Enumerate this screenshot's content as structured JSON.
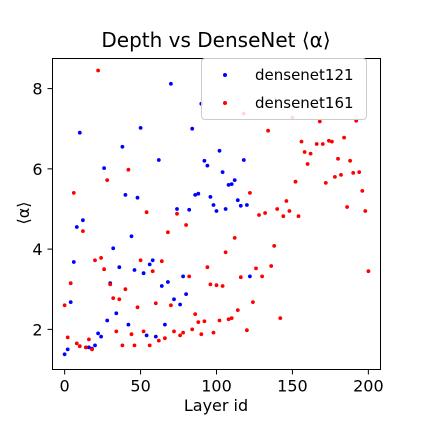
{
  "chart_data": {
    "type": "scatter",
    "title": "Depth vs DenseNet ⟨α⟩",
    "xlabel": "Layer id",
    "ylabel": "⟨α⟩",
    "xlim": [
      -8,
      208
    ],
    "ylim": [
      1.0,
      8.75
    ],
    "xticks": [
      0,
      50,
      100,
      150,
      200
    ],
    "yticks": [
      2,
      4,
      6,
      8
    ],
    "grid": false,
    "legend_position": "top-right",
    "series": [
      {
        "name": "densenet121",
        "color": "#0000ff",
        "points": [
          [
            0,
            1.38
          ],
          [
            2,
            1.5
          ],
          [
            4,
            2.68
          ],
          [
            6,
            3.68
          ],
          [
            8,
            4.55
          ],
          [
            10,
            6.9
          ],
          [
            12,
            4.72
          ],
          [
            14,
            1.55
          ],
          [
            16,
            1.55
          ],
          [
            18,
            1.52
          ],
          [
            20,
            1.6
          ],
          [
            22,
            1.9
          ],
          [
            24,
            1.82
          ],
          [
            26,
            6.02
          ],
          [
            28,
            2.22
          ],
          [
            30,
            3.15
          ],
          [
            32,
            4.02
          ],
          [
            34,
            2.4
          ],
          [
            36,
            3.55
          ],
          [
            38,
            6.55
          ],
          [
            40,
            5.35
          ],
          [
            42,
            2.12
          ],
          [
            44,
            4.32
          ],
          [
            46,
            3.48
          ],
          [
            48,
            5.28
          ],
          [
            50,
            7.02
          ],
          [
            52,
            3.4
          ],
          [
            54,
            1.85
          ],
          [
            56,
            3.62
          ],
          [
            58,
            3.72
          ],
          [
            60,
            1.82
          ],
          [
            62,
            6.22
          ],
          [
            64,
            3.08
          ],
          [
            66,
            2.12
          ],
          [
            68,
            3.18
          ],
          [
            70,
            8.12
          ],
          [
            72,
            2.75
          ],
          [
            74,
            5.0
          ],
          [
            76,
            2.62
          ],
          [
            78,
            3.32
          ],
          [
            80,
            2.88
          ],
          [
            82,
            4.98
          ],
          [
            84,
            7.0
          ],
          [
            86,
            5.35
          ],
          [
            88,
            5.38
          ],
          [
            90,
            7.62
          ],
          [
            92,
            6.2
          ],
          [
            94,
            6.08
          ],
          [
            96,
            5.3
          ],
          [
            98,
            5.1
          ],
          [
            100,
            4.95
          ],
          [
            102,
            6.45
          ],
          [
            104,
            5.92
          ],
          [
            106,
            5.0
          ],
          [
            108,
            5.6
          ],
          [
            110,
            5.62
          ],
          [
            112,
            5.72
          ],
          [
            114,
            5.22
          ],
          [
            116,
            5.08
          ],
          [
            118,
            6.22
          ],
          [
            120,
            5.1
          ],
          [
            122,
            3.32
          ]
        ]
      },
      {
        "name": "densenet161",
        "color": "#ff0000",
        "points": [
          [
            0,
            2.6
          ],
          [
            2,
            1.8
          ],
          [
            4,
            3.15
          ],
          [
            6,
            5.4
          ],
          [
            8,
            1.65
          ],
          [
            10,
            1.58
          ],
          [
            12,
            4.45
          ],
          [
            14,
            1.55
          ],
          [
            16,
            1.75
          ],
          [
            18,
            1.5
          ],
          [
            20,
            3.72
          ],
          [
            22,
            8.45
          ],
          [
            24,
            3.78
          ],
          [
            26,
            3.5
          ],
          [
            28,
            5.72
          ],
          [
            30,
            3.12
          ],
          [
            32,
            2.78
          ],
          [
            34,
            1.95
          ],
          [
            36,
            2.75
          ],
          [
            38,
            1.6
          ],
          [
            40,
            3.0
          ],
          [
            42,
            5.98
          ],
          [
            44,
            1.88
          ],
          [
            46,
            1.6
          ],
          [
            48,
            2.55
          ],
          [
            50,
            3.72
          ],
          [
            52,
            1.95
          ],
          [
            54,
            4.92
          ],
          [
            56,
            1.6
          ],
          [
            58,
            3.45
          ],
          [
            60,
            2.65
          ],
          [
            62,
            1.72
          ],
          [
            64,
            3.7
          ],
          [
            66,
            1.78
          ],
          [
            68,
            4.42
          ],
          [
            70,
            2.6
          ],
          [
            72,
            1.95
          ],
          [
            74,
            4.88
          ],
          [
            76,
            1.85
          ],
          [
            78,
            1.92
          ],
          [
            80,
            4.6
          ],
          [
            82,
            3.32
          ],
          [
            84,
            2.0
          ],
          [
            86,
            2.38
          ],
          [
            88,
            2.18
          ],
          [
            90,
            1.88
          ],
          [
            92,
            2.2
          ],
          [
            94,
            3.55
          ],
          [
            96,
            3.12
          ],
          [
            98,
            1.92
          ],
          [
            100,
            3.1
          ],
          [
            102,
            2.22
          ],
          [
            104,
            3.08
          ],
          [
            106,
            3.92
          ],
          [
            108,
            2.25
          ],
          [
            110,
            2.28
          ],
          [
            112,
            4.28
          ],
          [
            114,
            2.48
          ],
          [
            116,
            3.3
          ],
          [
            118,
            7.38
          ],
          [
            120,
            1.98
          ],
          [
            122,
            5.4
          ],
          [
            124,
            2.68
          ],
          [
            126,
            3.52
          ],
          [
            128,
            4.85
          ],
          [
            130,
            3.32
          ],
          [
            132,
            4.9
          ],
          [
            134,
            6.95
          ],
          [
            136,
            3.58
          ],
          [
            138,
            4.08
          ],
          [
            140,
            5.0
          ],
          [
            142,
            2.28
          ],
          [
            144,
            4.82
          ],
          [
            146,
            5.2
          ],
          [
            148,
            4.95
          ],
          [
            150,
            7.28
          ],
          [
            152,
            5.68
          ],
          [
            154,
            4.82
          ],
          [
            156,
            6.68
          ],
          [
            158,
            6.42
          ],
          [
            160,
            6.12
          ],
          [
            162,
            6.38
          ],
          [
            164,
            7.55
          ],
          [
            166,
            6.62
          ],
          [
            168,
            7.18
          ],
          [
            170,
            6.62
          ],
          [
            172,
            5.65
          ],
          [
            174,
            6.7
          ],
          [
            176,
            6.68
          ],
          [
            178,
            5.8
          ],
          [
            180,
            6.25
          ],
          [
            182,
            5.85
          ],
          [
            184,
            6.78
          ],
          [
            186,
            5.05
          ],
          [
            188,
            6.2
          ],
          [
            190,
            5.9
          ],
          [
            192,
            7.2
          ],
          [
            194,
            5.92
          ],
          [
            196,
            5.45
          ],
          [
            198,
            4.95
          ],
          [
            200,
            3.45
          ]
        ]
      }
    ]
  }
}
